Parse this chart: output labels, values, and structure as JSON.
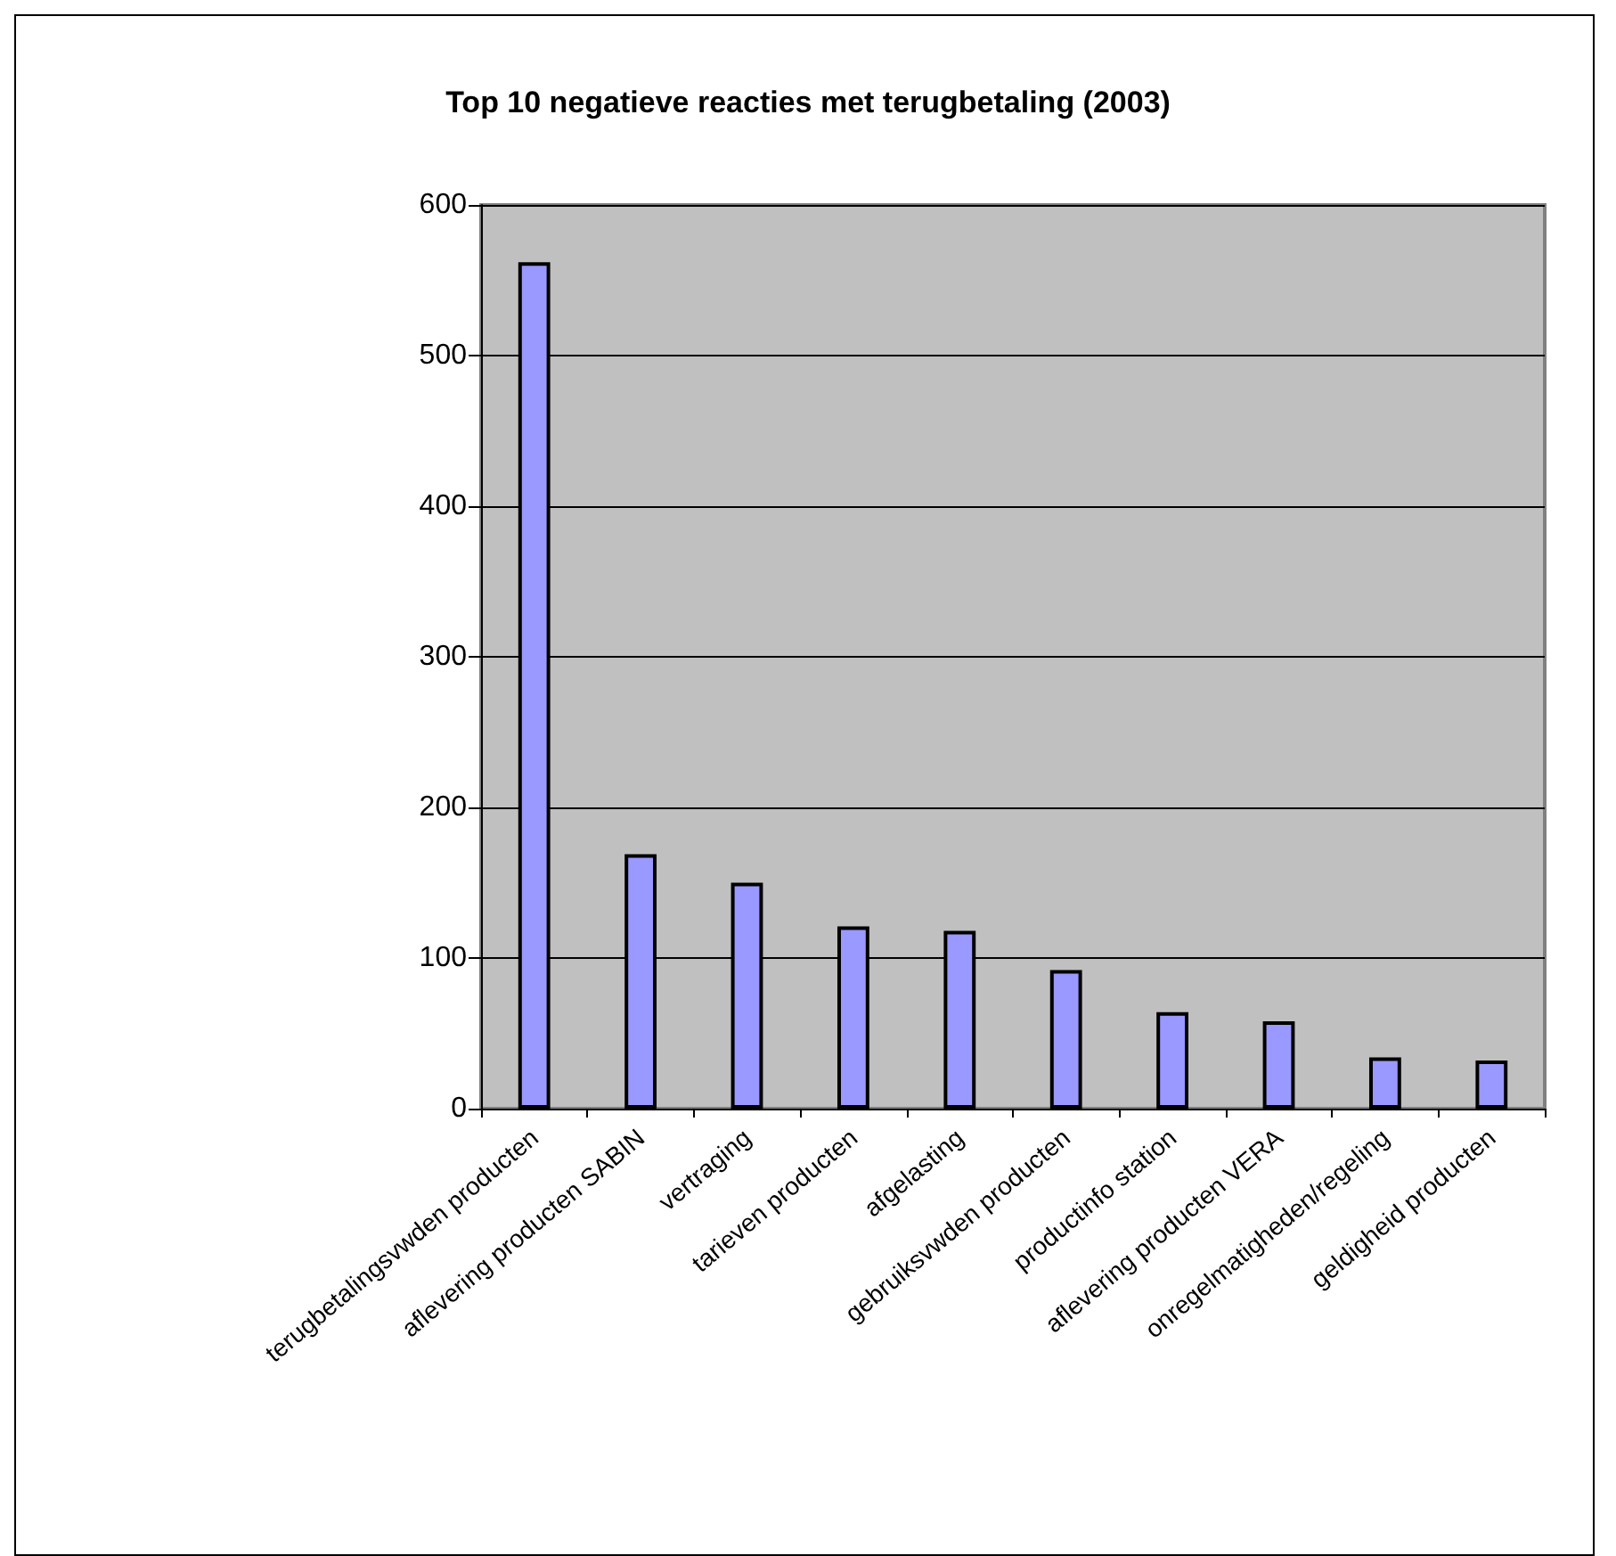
{
  "chart_data": {
    "type": "bar",
    "title": "Top 10 negatieve reacties met terugbetaling (2003)",
    "categories": [
      "terugbetalingsvwden producten",
      "aflevering producten SABIN",
      "vertraging",
      "tarieven producten",
      "afgelasting",
      "gebruiksvwden producten",
      "productinfo station",
      "aflevering producten VERA",
      "onregelmatigheden/regeling",
      "geldigheid producten"
    ],
    "values": [
      562,
      169,
      150,
      121,
      118,
      92,
      64,
      58,
      34,
      32
    ],
    "color": "#9999ff",
    "ylim": [
      0,
      600
    ],
    "yticks": [
      0,
      100,
      200,
      300,
      400,
      500,
      600
    ],
    "grid": "y"
  }
}
